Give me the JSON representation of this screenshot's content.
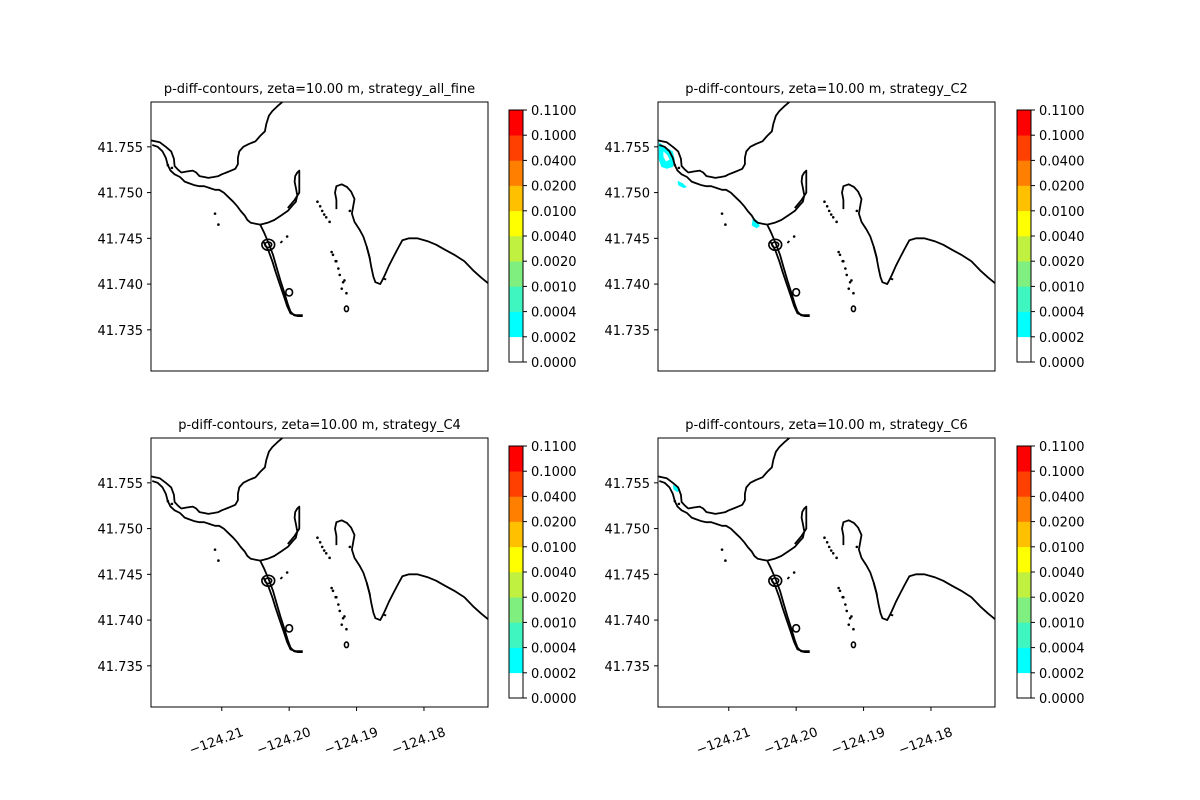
{
  "chart_data": [
    {
      "type": "contour-map",
      "title": "p-diff-contours, zeta=10.00 m, strategy_all_fine",
      "xlabel": "",
      "ylabel": "",
      "xlim": [
        -124.2205,
        -124.1705
      ],
      "ylim": [
        41.7305,
        41.7599
      ],
      "x_ticks": [],
      "x_tick_labels": [],
      "y_ticks": [
        41.735,
        41.74,
        41.745,
        41.75,
        41.755
      ],
      "y_tick_labels": [
        "41.735",
        "41.740",
        "41.745",
        "41.750",
        "41.755"
      ],
      "colorbar": {
        "levels": [
          0.0,
          0.0002,
          0.0004,
          0.001,
          0.002,
          0.004,
          0.01,
          0.02,
          0.04,
          0.1,
          0.11
        ],
        "labels": [
          "0.0000",
          "0.0002",
          "0.0004",
          "0.0010",
          "0.0020",
          "0.0040",
          "0.0100",
          "0.0200",
          "0.0400",
          "0.1000",
          "0.1100"
        ],
        "colors": [
          "#ffffff",
          "#00ffff",
          "#3ff5c0",
          "#7ff07f",
          "#c0f040",
          "#ffff00",
          "#ffc000",
          "#ff8000",
          "#ff4000",
          "#ff0000"
        ]
      },
      "filled_regions": []
    },
    {
      "type": "contour-map",
      "title": "p-diff-contours, zeta=10.00 m, strategy_C2",
      "xlabel": "",
      "ylabel": "",
      "xlim": [
        -124.2205,
        -124.1705
      ],
      "ylim": [
        41.7305,
        41.7599
      ],
      "x_ticks": [],
      "x_tick_labels": [],
      "y_ticks": [
        41.735,
        41.74,
        41.745,
        41.75,
        41.755
      ],
      "y_tick_labels": [
        "41.735",
        "41.740",
        "41.745",
        "41.750",
        "41.755"
      ],
      "colorbar": {
        "levels": [
          0.0,
          0.0002,
          0.0004,
          0.001,
          0.002,
          0.004,
          0.01,
          0.02,
          0.04,
          0.1,
          0.11
        ],
        "labels": [
          "0.0000",
          "0.0002",
          "0.0004",
          "0.0010",
          "0.0020",
          "0.0040",
          "0.0100",
          "0.0200",
          "0.0400",
          "0.1000",
          "0.1100"
        ],
        "colors": [
          "#ffffff",
          "#00ffff",
          "#3ff5c0",
          "#7ff07f",
          "#c0f040",
          "#ffff00",
          "#ffc000",
          "#ff8000",
          "#ff4000",
          "#ff0000"
        ]
      },
      "filled_regions": [
        {
          "color": "#00ffff",
          "points": [
            [
              -124.2204,
              41.7555
            ],
            [
              -124.2192,
              41.7549
            ],
            [
              -124.2183,
              41.7545
            ],
            [
              -124.218,
              41.7536
            ],
            [
              -124.2183,
              41.7528
            ],
            [
              -124.2192,
              41.7526
            ],
            [
              -124.22,
              41.7528
            ],
            [
              -124.2204,
              41.7536
            ]
          ]
        },
        {
          "color": "#ffffff",
          "points": [
            [
              -124.2197,
              41.7545
            ],
            [
              -124.2191,
              41.7541
            ],
            [
              -124.2188,
              41.7536
            ],
            [
              -124.2193,
              41.7534
            ],
            [
              -124.2197,
              41.7539
            ]
          ]
        },
        {
          "color": "#00ffff",
          "points": [
            [
              -124.2176,
              41.7513
            ],
            [
              -124.2168,
              41.751
            ],
            [
              -124.2162,
              41.7506
            ],
            [
              -124.2167,
              41.7505
            ],
            [
              -124.2175,
              41.7508
            ]
          ]
        },
        {
          "color": "#00ffff",
          "points": [
            [
              -124.2064,
              41.7473
            ],
            [
              -124.2056,
              41.7468
            ],
            [
              -124.2054,
              41.7463
            ],
            [
              -124.2059,
              41.7461
            ],
            [
              -124.2066,
              41.7464
            ]
          ]
        }
      ]
    },
    {
      "type": "contour-map",
      "title": "p-diff-contours, zeta=10.00 m, strategy_C4",
      "xlabel": "",
      "ylabel": "",
      "xlim": [
        -124.2205,
        -124.1705
      ],
      "ylim": [
        41.7305,
        41.7599
      ],
      "x_ticks": [
        -124.21,
        -124.2,
        -124.19,
        -124.18
      ],
      "x_tick_labels": [
        "−124.21",
        "−124.20",
        "−124.19",
        "−124.18"
      ],
      "y_ticks": [
        41.735,
        41.74,
        41.745,
        41.75,
        41.755
      ],
      "y_tick_labels": [
        "41.735",
        "41.740",
        "41.745",
        "41.750",
        "41.755"
      ],
      "colorbar": {
        "levels": [
          0.0,
          0.0002,
          0.0004,
          0.001,
          0.002,
          0.004,
          0.01,
          0.02,
          0.04,
          0.1,
          0.11
        ],
        "labels": [
          "0.0000",
          "0.0002",
          "0.0004",
          "0.0010",
          "0.0020",
          "0.0040",
          "0.0100",
          "0.0200",
          "0.0400",
          "0.1000",
          "0.1100"
        ],
        "colors": [
          "#ffffff",
          "#00ffff",
          "#3ff5c0",
          "#7ff07f",
          "#c0f040",
          "#ffff00",
          "#ffc000",
          "#ff8000",
          "#ff4000",
          "#ff0000"
        ]
      },
      "filled_regions": []
    },
    {
      "type": "contour-map",
      "title": "p-diff-contours, zeta=10.00 m, strategy_C6",
      "xlabel": "",
      "ylabel": "",
      "xlim": [
        -124.2205,
        -124.1705
      ],
      "ylim": [
        41.7305,
        41.7599
      ],
      "x_ticks": [
        -124.21,
        -124.2,
        -124.19,
        -124.18
      ],
      "x_tick_labels": [
        "−124.21",
        "−124.20",
        "−124.19",
        "−124.18"
      ],
      "y_ticks": [
        41.735,
        41.74,
        41.745,
        41.75,
        41.755
      ],
      "y_tick_labels": [
        "41.735",
        "41.740",
        "41.745",
        "41.750",
        "41.755"
      ],
      "colorbar": {
        "levels": [
          0.0,
          0.0002,
          0.0004,
          0.001,
          0.002,
          0.004,
          0.01,
          0.02,
          0.04,
          0.1,
          0.11
        ],
        "labels": [
          "0.0000",
          "0.0002",
          "0.0004",
          "0.0010",
          "0.0020",
          "0.0040",
          "0.0100",
          "0.0200",
          "0.0400",
          "0.1000",
          "0.1100"
        ],
        "colors": [
          "#ffffff",
          "#00ffff",
          "#3ff5c0",
          "#7ff07f",
          "#c0f040",
          "#ffff00",
          "#ffc000",
          "#ff8000",
          "#ff4000",
          "#ff0000"
        ]
      },
      "filled_regions": [
        {
          "color": "#00ffff",
          "points": [
            [
              -124.2183,
              41.7548
            ],
            [
              -124.2177,
              41.7545
            ],
            [
              -124.2173,
              41.7541
            ],
            [
              -124.2177,
              41.754
            ],
            [
              -124.2182,
              41.7543
            ]
          ]
        }
      ]
    }
  ],
  "coastline": {
    "lines": [
      [
        [
          -124.2205,
          41.7557
        ],
        [
          -124.2192,
          41.7555
        ],
        [
          -124.2183,
          41.755
        ],
        [
          -124.2175,
          41.7545
        ],
        [
          -124.2171,
          41.7537
        ],
        [
          -124.217,
          41.7529
        ],
        [
          -124.2165,
          41.7525
        ],
        [
          -124.216,
          41.7522
        ],
        [
          -124.2152,
          41.7523
        ],
        [
          -124.2143,
          41.7524
        ],
        [
          -124.2138,
          41.7522
        ],
        [
          -124.2133,
          41.7518
        ],
        [
          -124.2126,
          41.7517
        ],
        [
          -124.212,
          41.7516
        ],
        [
          -124.2112,
          41.7517
        ],
        [
          -124.2105,
          41.7518
        ],
        [
          -124.21,
          41.752
        ],
        [
          -124.2093,
          41.7522
        ],
        [
          -124.2086,
          41.7524
        ],
        [
          -124.208,
          41.7526
        ],
        [
          -124.2076,
          41.7531
        ],
        [
          -124.2076,
          41.7538
        ],
        [
          -124.2074,
          41.7545
        ],
        [
          -124.2068,
          41.755
        ],
        [
          -124.206,
          41.7553
        ],
        [
          -124.205,
          41.7556
        ],
        [
          -124.2043,
          41.7562
        ],
        [
          -124.2036,
          41.7567
        ],
        [
          -124.2034,
          41.7575
        ],
        [
          -124.203,
          41.7584
        ],
        [
          -124.2025,
          41.7589
        ],
        [
          -124.2018,
          41.7594
        ],
        [
          -124.201,
          41.7599
        ]
      ],
      [
        [
          -124.2203,
          41.7552
        ],
        [
          -124.2195,
          41.755
        ],
        [
          -124.2188,
          41.7545
        ],
        [
          -124.2183,
          41.7538
        ],
        [
          -124.218,
          41.753
        ],
        [
          -124.2176,
          41.7524
        ],
        [
          -124.217,
          41.752
        ],
        [
          -124.2162,
          41.7517
        ],
        [
          -124.2155,
          41.7512
        ],
        [
          -124.2148,
          41.751
        ],
        [
          -124.214,
          41.7508
        ],
        [
          -124.2133,
          41.7507
        ],
        [
          -124.2126,
          41.7507
        ],
        [
          -124.2118,
          41.7505
        ],
        [
          -124.211,
          41.7503
        ],
        [
          -124.2104,
          41.7503
        ],
        [
          -124.2097,
          41.75
        ],
        [
          -124.209,
          41.7495
        ],
        [
          -124.2083,
          41.749
        ],
        [
          -124.2077,
          41.7485
        ],
        [
          -124.2072,
          41.748
        ],
        [
          -124.2066,
          41.7475
        ],
        [
          -124.2062,
          41.747
        ],
        [
          -124.2057,
          41.7467
        ],
        [
          -124.205,
          41.7466
        ],
        [
          -124.2043,
          41.7465
        ]
      ],
      [
        [
          -124.2043,
          41.7465
        ],
        [
          -124.2032,
          41.7467
        ],
        [
          -124.2022,
          41.747
        ],
        [
          -124.2012,
          41.7475
        ],
        [
          -124.2002,
          41.748
        ],
        [
          -124.1995,
          41.7486
        ],
        [
          -124.199,
          41.749
        ],
        [
          -124.1988,
          41.7497
        ],
        [
          -124.199,
          41.7505
        ],
        [
          -124.1992,
          41.7512
        ],
        [
          -124.1991,
          41.7518
        ],
        [
          -124.1988,
          41.7522
        ],
        [
          -124.1985,
          41.7524
        ],
        [
          -124.1985,
          41.752
        ],
        [
          -124.1985,
          41.751
        ],
        [
          -124.1985,
          41.75
        ],
        [
          -124.1992,
          41.7492
        ],
        [
          -124.2002,
          41.7483
        ]
      ],
      [
        [
          -124.2043,
          41.7465
        ],
        [
          -124.2037,
          41.7456
        ],
        [
          -124.203,
          41.7444
        ],
        [
          -124.2024,
          41.7432
        ],
        [
          -124.2019,
          41.7419
        ],
        [
          -124.2013,
          41.7404
        ],
        [
          -124.2007,
          41.739
        ],
        [
          -124.2002,
          41.7378
        ],
        [
          -124.1998,
          41.737
        ],
        [
          -124.1993,
          41.7366
        ],
        [
          -124.1987,
          41.7365
        ],
        [
          -124.198,
          41.7365
        ]
      ],
      [
        [
          -124.2038,
          41.7446
        ],
        [
          -124.2031,
          41.7437
        ],
        [
          -124.2025,
          41.7425
        ],
        [
          -124.202,
          41.7413
        ],
        [
          -124.2014,
          41.74
        ],
        [
          -124.2008,
          41.7387
        ],
        [
          -124.2003,
          41.7376
        ],
        [
          -124.1998,
          41.7368
        ],
        [
          -124.199,
          41.7366
        ],
        [
          -124.198,
          41.7366
        ]
      ],
      [
        [
          -124.193,
          41.7482
        ],
        [
          -124.193,
          41.7492
        ],
        [
          -124.1932,
          41.75
        ],
        [
          -124.193,
          41.7507
        ],
        [
          -124.1922,
          41.7509
        ],
        [
          -124.1914,
          41.7506
        ],
        [
          -124.1908,
          41.7501
        ],
        [
          -124.1903,
          41.7493
        ],
        [
          -124.1905,
          41.7485
        ],
        [
          -124.1907,
          41.7477
        ],
        [
          -124.1903,
          41.7468
        ],
        [
          -124.1896,
          41.746
        ],
        [
          -124.189,
          41.7452
        ],
        [
          -124.1885,
          41.7441
        ],
        [
          -124.1881,
          41.743
        ],
        [
          -124.1878,
          41.7418
        ],
        [
          -124.1875,
          41.7408
        ],
        [
          -124.1872,
          41.7402
        ],
        [
          -124.1865,
          41.74
        ],
        [
          -124.1862,
          41.7404
        ],
        [
          -124.1858,
          41.741
        ],
        [
          -124.1852,
          41.742
        ],
        [
          -124.1845,
          41.743
        ],
        [
          -124.1838,
          41.744
        ],
        [
          -124.1832,
          41.7448
        ],
        [
          -124.1822,
          41.745
        ],
        [
          -124.181,
          41.745
        ],
        [
          -124.1795,
          41.7447
        ],
        [
          -124.1782,
          41.7443
        ],
        [
          -124.177,
          41.7438
        ],
        [
          -124.1755,
          41.7432
        ],
        [
          -124.174,
          41.7425
        ],
        [
          -124.1727,
          41.7415
        ],
        [
          -124.1715,
          41.7407
        ],
        [
          -124.1705,
          41.7401
        ]
      ],
      [
        [
          -124.1885,
          41.7441
        ],
        [
          -124.188,
          41.7427
        ]
      ],
      [
        [
          -124.186,
          41.7406
        ],
        [
          -124.1856,
          41.7405
        ]
      ],
      [
        [
          -124.2013,
          41.7445
        ],
        [
          -124.201,
          41.7447
        ]
      ]
    ],
    "loops": [
      {
        "center": [
          -124.2031,
          41.7443
        ],
        "radius": [
          0.00095,
          0.0006
        ]
      },
      {
        "center": [
          -124.2031,
          41.7443
        ],
        "radius": [
          0.0005,
          0.0003
        ]
      },
      {
        "center": [
          -124.2,
          41.7391
        ],
        "radius": [
          0.0005,
          0.0004
        ]
      },
      {
        "center": [
          -124.1915,
          41.7373
        ],
        "radius": [
          0.0003,
          0.0003
        ]
      }
    ],
    "dots": [
      [
        -124.218,
        41.753
      ],
      [
        -124.2174,
        41.7527
      ],
      [
        -124.211,
        41.7477
      ],
      [
        -124.2105,
        41.7465
      ],
      [
        -124.2003,
        41.7452
      ],
      [
        -124.1958,
        41.749
      ],
      [
        -124.1954,
        41.7485
      ],
      [
        -124.1951,
        41.748
      ],
      [
        -124.1948,
        41.7476
      ],
      [
        -124.1945,
        41.7473
      ],
      [
        -124.194,
        41.7468
      ],
      [
        -124.191,
        41.748
      ],
      [
        -124.1915,
        41.739
      ],
      [
        -124.1922,
        41.7395
      ],
      [
        -124.1925,
        41.741
      ],
      [
        -124.193,
        41.7425
      ],
      [
        -124.1935,
        41.7432
      ],
      [
        -124.1918,
        41.7404
      ],
      [
        -124.192,
        41.7402
      ],
      [
        -124.1927,
        41.7417
      ],
      [
        -124.1931,
        41.7425
      ],
      [
        -124.1937,
        41.7435
      ]
    ]
  }
}
